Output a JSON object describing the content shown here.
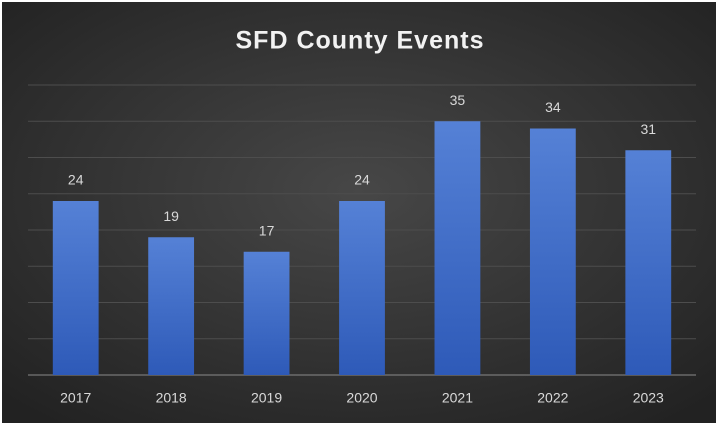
{
  "chart_data": {
    "type": "bar",
    "title": "SFD County Events",
    "categories": [
      "2017",
      "2018",
      "2019",
      "2020",
      "2021",
      "2022",
      "2023"
    ],
    "values": [
      24,
      19,
      17,
      24,
      35,
      34,
      31
    ],
    "color": "#4472c4",
    "ylim": [
      0,
      40
    ],
    "yticks": [
      0,
      5,
      10,
      15,
      20,
      25,
      30,
      35,
      40
    ],
    "grid": true
  }
}
